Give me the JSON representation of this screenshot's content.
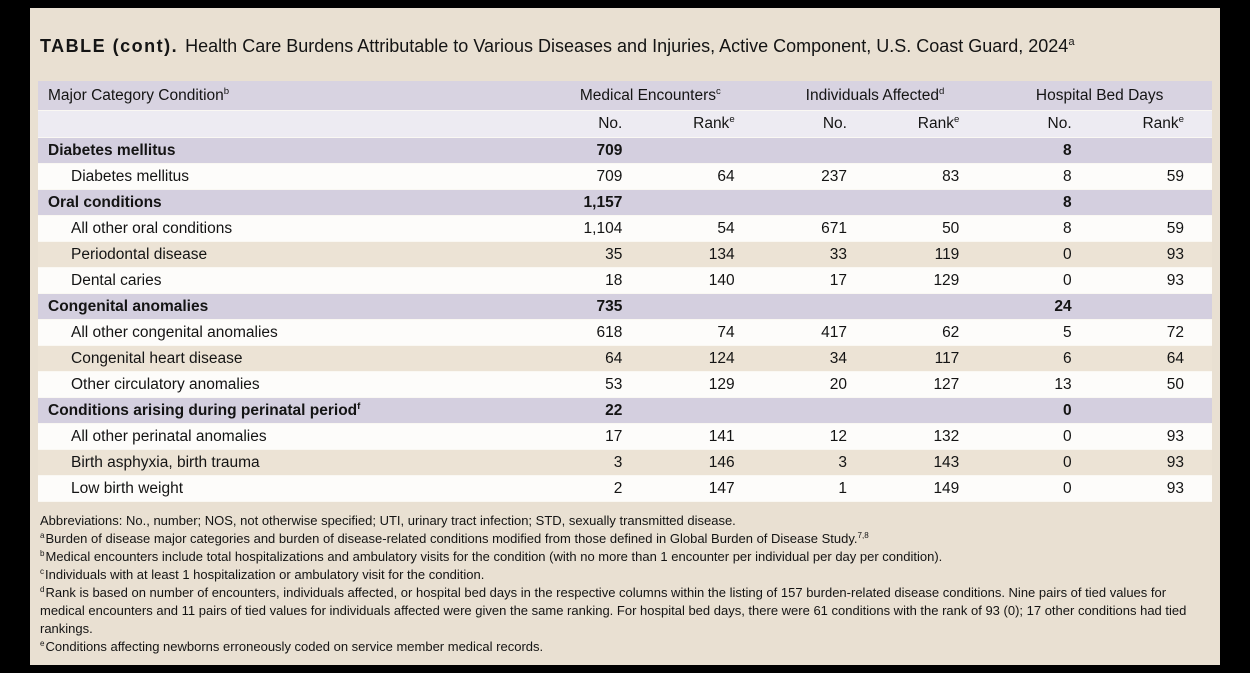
{
  "title": {
    "label": "TABLE (cont).",
    "text": "Health Care Burdens Attributable to Various Diseases and Injuries, Active Component, U.S. Coast Guard, 2024",
    "sup": "a"
  },
  "table": {
    "condition_header": {
      "label": "Major Category Condition",
      "sup": "b"
    },
    "groups": [
      {
        "label": "Medical Encounters",
        "sup": "c"
      },
      {
        "label": "Individuals Affected",
        "sup": "d"
      },
      {
        "label": "Hospital Bed Days",
        "sup": ""
      }
    ],
    "sub": {
      "no": "No.",
      "rank": "Rank",
      "rank_sup": "e"
    },
    "rows": [
      {
        "type": "category",
        "label": "Diabetes mellitus",
        "sup": "",
        "me_no": "709",
        "me_rank": "",
        "ia_no": "",
        "ia_rank": "",
        "hbd_no": "8",
        "hbd_rank": ""
      },
      {
        "type": "detail",
        "label": "Diabetes mellitus",
        "sup": "",
        "me_no": "709",
        "me_rank": "64",
        "ia_no": "237",
        "ia_rank": "83",
        "hbd_no": "8",
        "hbd_rank": "59"
      },
      {
        "type": "category",
        "label": "Oral conditions",
        "sup": "",
        "me_no": "1,157",
        "me_rank": "",
        "ia_no": "",
        "ia_rank": "",
        "hbd_no": "8",
        "hbd_rank": ""
      },
      {
        "type": "detail",
        "label": "All other oral conditions",
        "sup": "",
        "me_no": "1,104",
        "me_rank": "54",
        "ia_no": "671",
        "ia_rank": "50",
        "hbd_no": "8",
        "hbd_rank": "59"
      },
      {
        "type": "detail",
        "label": "Periodontal disease",
        "sup": "",
        "me_no": "35",
        "me_rank": "134",
        "ia_no": "33",
        "ia_rank": "119",
        "hbd_no": "0",
        "hbd_rank": "93"
      },
      {
        "type": "detail",
        "label": "Dental caries",
        "sup": "",
        "me_no": "18",
        "me_rank": "140",
        "ia_no": "17",
        "ia_rank": "129",
        "hbd_no": "0",
        "hbd_rank": "93"
      },
      {
        "type": "category",
        "label": "Congenital anomalies",
        "sup": "",
        "me_no": "735",
        "me_rank": "",
        "ia_no": "",
        "ia_rank": "",
        "hbd_no": "24",
        "hbd_rank": ""
      },
      {
        "type": "detail",
        "label": "All other congenital anomalies",
        "sup": "",
        "me_no": "618",
        "me_rank": "74",
        "ia_no": "417",
        "ia_rank": "62",
        "hbd_no": "5",
        "hbd_rank": "72"
      },
      {
        "type": "detail",
        "label": "Congenital heart disease",
        "sup": "",
        "me_no": "64",
        "me_rank": "124",
        "ia_no": "34",
        "ia_rank": "117",
        "hbd_no": "6",
        "hbd_rank": "64"
      },
      {
        "type": "detail",
        "label": "Other circulatory anomalies",
        "sup": "",
        "me_no": "53",
        "me_rank": "129",
        "ia_no": "20",
        "ia_rank": "127",
        "hbd_no": "13",
        "hbd_rank": "50"
      },
      {
        "type": "category",
        "label": "Conditions arising during perinatal period",
        "sup": "f",
        "me_no": "22",
        "me_rank": "",
        "ia_no": "",
        "ia_rank": "",
        "hbd_no": "0",
        "hbd_rank": ""
      },
      {
        "type": "detail",
        "label": "All other perinatal anomalies",
        "sup": "",
        "me_no": "17",
        "me_rank": "141",
        "ia_no": "12",
        "ia_rank": "132",
        "hbd_no": "0",
        "hbd_rank": "93"
      },
      {
        "type": "detail",
        "label": "Birth asphyxia, birth trauma",
        "sup": "",
        "me_no": "3",
        "me_rank": "146",
        "ia_no": "3",
        "ia_rank": "143",
        "hbd_no": "0",
        "hbd_rank": "93"
      },
      {
        "type": "detail",
        "label": "Low birth weight",
        "sup": "",
        "me_no": "2",
        "me_rank": "147",
        "ia_no": "1",
        "ia_rank": "149",
        "hbd_no": "0",
        "hbd_rank": "93"
      }
    ]
  },
  "footnotes": [
    {
      "marker": "",
      "text": "Abbreviations: No., number; NOS, not otherwise specified; UTI, urinary tract infection; STD, sexually transmitted disease.",
      "post_sup": ""
    },
    {
      "marker": "a",
      "text": "Burden of disease major categories and burden of disease-related conditions modified from those defined in Global Burden of Disease Study.",
      "post_sup": "7,8"
    },
    {
      "marker": "b",
      "text": "Medical encounters include total hospitalizations and ambulatory visits for the condition (with no more than 1 encounter per individual per day per condition).",
      "post_sup": ""
    },
    {
      "marker": "c",
      "text": "Individuals with at least 1 hospitalization or ambulatory visit for the condition.",
      "post_sup": ""
    },
    {
      "marker": "d",
      "text": "Rank is based on number of encounters, individuals affected, or hospital bed days in the respective columns within the listing of 157 burden-related disease conditions. Nine pairs of tied values for medical encounters and 11 pairs of tied values for individuals affected were given the same ranking. For hospital bed days, there were 61 conditions with the rank of 93 (0); 17 other conditions had tied rankings.",
      "post_sup": ""
    },
    {
      "marker": "e",
      "text": "Conditions affecting newborns erroneously coded on service member medical records.",
      "post_sup": ""
    }
  ],
  "colors": {
    "frame": "#000000",
    "page_bg": "#e9e0d2",
    "header_bg": "#d8d3e1",
    "subheader_bg": "#edebf2",
    "category_row_bg": "#d4cfdf",
    "detail_row_bg": "#fdfcfa",
    "detail_row_alt_bg": "#ece3d5"
  }
}
